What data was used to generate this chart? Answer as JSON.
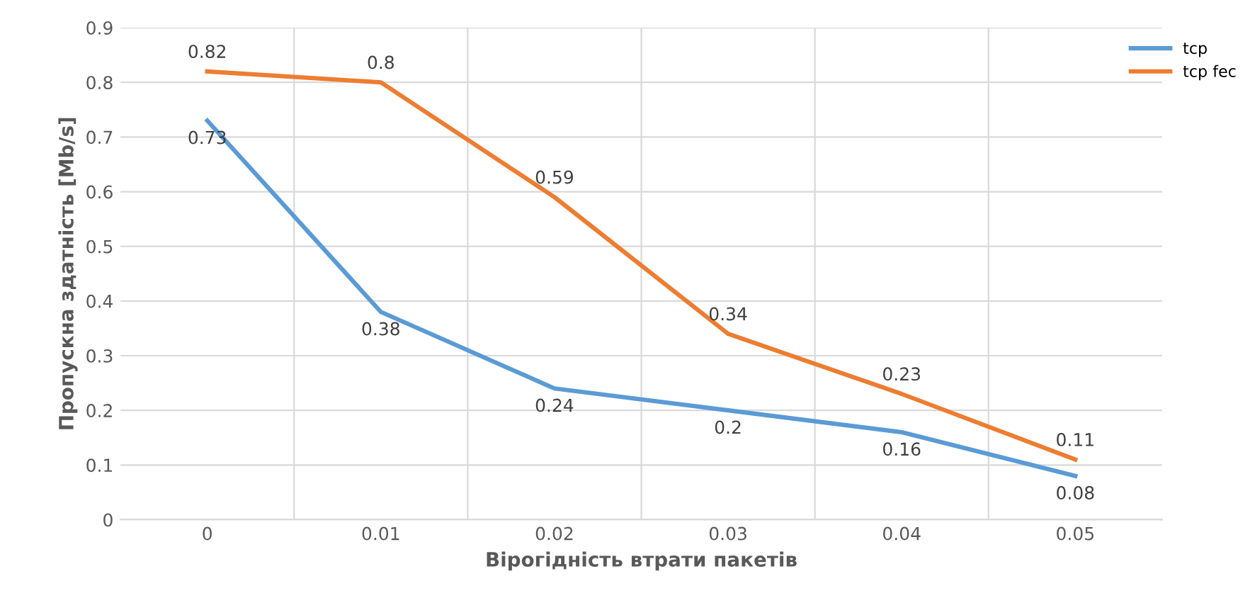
{
  "chart_data": {
    "type": "line",
    "xlabel": "Вірогідність втрати пакетів",
    "ylabel": "Пропускна здатність [Mb/s]",
    "categories": [
      "0",
      "0.01",
      "0.02",
      "0.03",
      "0.04",
      "0.05"
    ],
    "series": [
      {
        "name": "tcp",
        "color": "#5b9bd5",
        "values": [
          0.73,
          0.38,
          0.24,
          0.2,
          0.16,
          0.08
        ]
      },
      {
        "name": "tcp fec",
        "color": "#ed7d31",
        "values": [
          0.82,
          0.8,
          0.59,
          0.34,
          0.23,
          0.11
        ]
      }
    ],
    "ylim": [
      0,
      0.9
    ],
    "yticks": [
      0,
      0.1,
      0.2,
      0.3,
      0.4,
      0.5,
      0.6,
      0.7,
      0.8,
      0.9
    ],
    "grid": true,
    "legend": "top right",
    "data_labels": true,
    "marker": "none",
    "line_style": "solid"
  }
}
